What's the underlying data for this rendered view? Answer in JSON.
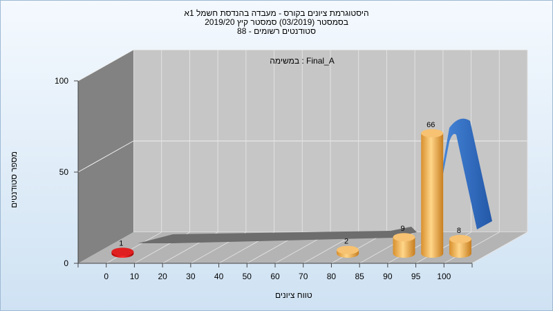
{
  "chart_data": {
    "type": "bar",
    "title_lines": [
      "היסטוגרמת ציונים בקורס - מעבדה בהנדסת חשמל 1א",
      "בסמסטר  (03/2019)  סמסטר קיץ 2019/20",
      "סטודנטים רשומים - 88"
    ],
    "annotation": "במשימה : Final_A",
    "xlabel": "טווח ציונים",
    "ylabel": "מספר סטודנטים",
    "categories": [
      "0",
      "10",
      "20",
      "30",
      "40",
      "50",
      "60",
      "70",
      "80",
      "85",
      "90",
      "95",
      "100"
    ],
    "values": [
      1,
      0,
      0,
      0,
      0,
      0,
      0,
      0,
      2,
      0,
      9,
      66,
      8
    ],
    "value_labels": [
      "1",
      "",
      "",
      "",
      "",
      "",
      "",
      "",
      "2",
      "",
      "9",
      "66",
      "8"
    ],
    "y_ticks": [
      "0",
      "50",
      "100"
    ],
    "ylim": [
      0,
      100
    ],
    "colors": {
      "normal": "#f0b050",
      "low": "#e01010",
      "curve": "#2f6fc4"
    }
  }
}
